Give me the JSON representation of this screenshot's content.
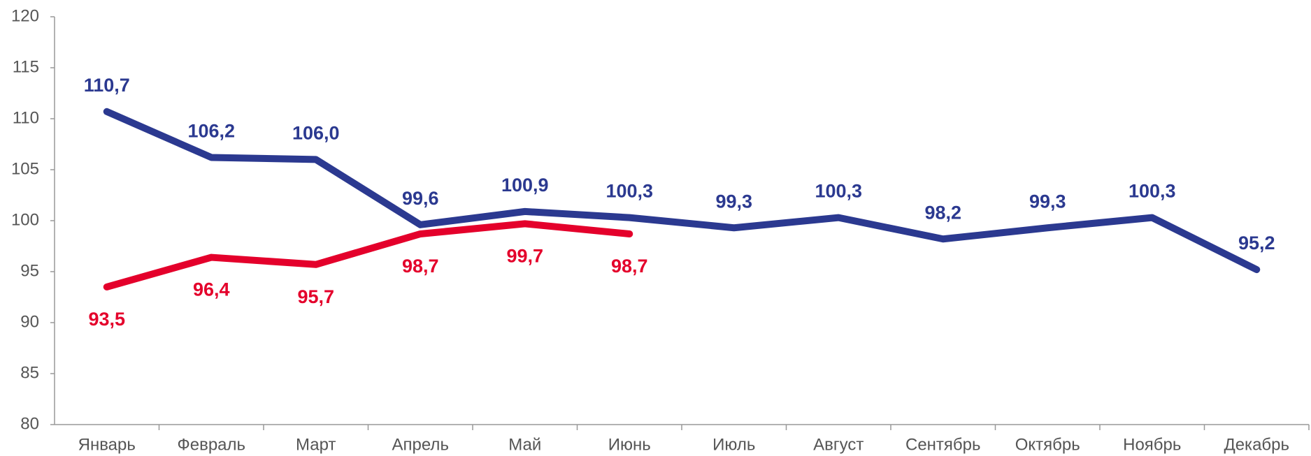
{
  "chart_data": {
    "type": "line",
    "categories": [
      "Январь",
      "Февраль",
      "Март",
      "Апрель",
      "Май",
      "Июнь",
      "Июль",
      "Август",
      "Сентябрь",
      "Октябрь",
      "Ноябрь",
      "Декабрь"
    ],
    "series": [
      {
        "color": "#2b3990",
        "values": [
          110.7,
          106.2,
          106.0,
          99.6,
          100.9,
          100.3,
          99.3,
          100.3,
          98.2,
          99.3,
          100.3,
          95.2
        ],
        "value_labels": [
          "110,7",
          "106,2",
          "106,0",
          "99,6",
          "100,9",
          "100,3",
          "99,3",
          "100,3",
          "98,2",
          "99,3",
          "100,3",
          "95,2"
        ]
      },
      {
        "color": "#e4002b",
        "values": [
          93.5,
          96.4,
          95.7,
          98.7,
          99.7,
          98.7,
          null,
          null,
          null,
          null,
          null,
          null
        ],
        "value_labels": [
          "93,5",
          "96,4",
          "95,7",
          "98,7",
          "99,7",
          "98,7",
          null,
          null,
          null,
          null,
          null,
          null
        ]
      }
    ],
    "ylim": [
      80,
      120
    ],
    "yticks": [
      80,
      85,
      90,
      95,
      100,
      105,
      110,
      115,
      120
    ],
    "grid": false
  }
}
